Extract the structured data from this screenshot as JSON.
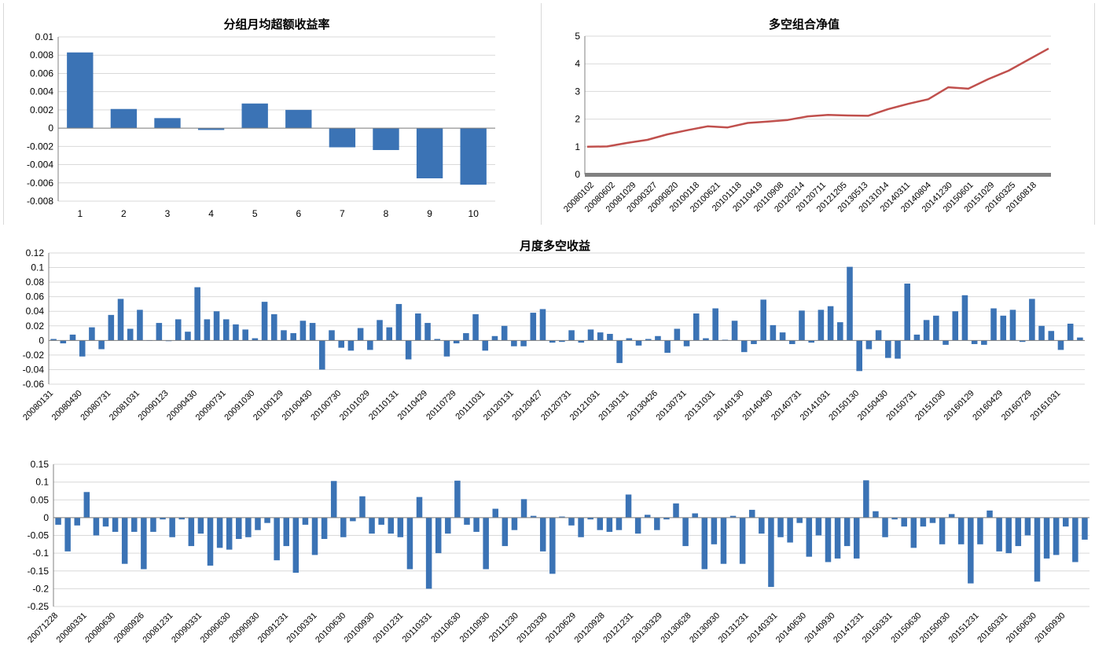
{
  "colors": {
    "bar": "#3b73b5",
    "line": "#c0504d",
    "grid": "#d9d9d9",
    "axis": "#808080",
    "zero_band": "#808080"
  },
  "chart_data": [
    {
      "type": "bar",
      "title": "分组月均超额收益率",
      "categories": [
        "1",
        "2",
        "3",
        "4",
        "5",
        "6",
        "7",
        "8",
        "9",
        "10"
      ],
      "values": [
        0.0083,
        0.0021,
        0.0011,
        -0.0002,
        0.0027,
        0.002,
        -0.0021,
        -0.0024,
        -0.0055,
        -0.0062
      ],
      "ylim": [
        -0.008,
        0.01
      ],
      "yticks": [
        0.01,
        0.008,
        0.006,
        0.004,
        0.002,
        0,
        -0.002,
        -0.004,
        -0.006,
        -0.008
      ],
      "ytick_labels": [
        "0.01",
        "0.008",
        "0.006",
        "0.004",
        "0.002",
        "0",
        "-0.002",
        "-0.004",
        "-0.006",
        "-0.008"
      ],
      "grid": true
    },
    {
      "type": "line",
      "title": "多空组合净值",
      "x_tick_labels": [
        "20080102",
        "20080602",
        "20081029",
        "20090327",
        "20090820",
        "20100118",
        "20100621",
        "20101118",
        "20110419",
        "20110908",
        "20120214",
        "20120711",
        "20121205",
        "20130513",
        "20131014",
        "20140311",
        "20140804",
        "20141230",
        "20150601",
        "20151029",
        "20160325",
        "20160818"
      ],
      "y": [
        1.0,
        1.01,
        1.14,
        1.25,
        1.45,
        1.6,
        1.74,
        1.7,
        1.86,
        1.91,
        1.97,
        2.1,
        2.15,
        2.13,
        2.12,
        2.36,
        2.55,
        2.72,
        3.15,
        3.1,
        3.45,
        3.75,
        4.15,
        4.55
      ],
      "ylim": [
        0,
        5
      ],
      "yticks": [
        0,
        1,
        2,
        3,
        4,
        5
      ],
      "ytick_labels": [
        "0",
        "1",
        "2",
        "3",
        "4",
        "5"
      ],
      "grid": true
    },
    {
      "type": "bar",
      "title": "月度多空收益",
      "x_tick_labels": [
        "20080131",
        "20080430",
        "20080731",
        "20081031",
        "20090123",
        "20090430",
        "20090731",
        "20091030",
        "20100129",
        "20100430",
        "20100730",
        "20101029",
        "20110131",
        "20110429",
        "20110729",
        "20111031",
        "20120131",
        "20120427",
        "20120731",
        "20121031",
        "20130131",
        "20130426",
        "20130731",
        "20131031",
        "20140130",
        "20140430",
        "20140731",
        "20141031",
        "20150130",
        "20150430",
        "20150731",
        "20151030",
        "20160129",
        "20160429",
        "20160729",
        "20161031"
      ],
      "values": [
        0.002,
        -0.004,
        0.008,
        -0.022,
        0.018,
        -0.012,
        0.035,
        0.057,
        0.016,
        0.042,
        0.0,
        0.024,
        -0.001,
        0.029,
        0.012,
        0.073,
        0.029,
        0.04,
        0.029,
        0.022,
        0.015,
        0.003,
        0.053,
        0.036,
        0.014,
        0.01,
        0.027,
        0.024,
        -0.04,
        0.014,
        -0.01,
        -0.014,
        0.017,
        -0.013,
        0.028,
        0.018,
        0.05,
        -0.026,
        0.037,
        0.024,
        0.002,
        -0.022,
        -0.004,
        0.01,
        0.036,
        -0.014,
        0.006,
        0.02,
        -0.008,
        -0.008,
        0.038,
        0.043,
        -0.003,
        -0.002,
        0.014,
        -0.003,
        0.015,
        0.011,
        0.009,
        -0.031,
        0.003,
        -0.007,
        0.002,
        0.006,
        -0.017,
        0.016,
        -0.008,
        0.037,
        0.003,
        0.044,
        0.001,
        0.027,
        -0.016,
        -0.005,
        0.056,
        0.021,
        0.011,
        -0.005,
        0.041,
        -0.003,
        0.042,
        0.047,
        0.025,
        0.101,
        -0.042,
        -0.012,
        0.014,
        -0.024,
        -0.025,
        0.078,
        0.008,
        0.028,
        0.034,
        -0.006,
        0.04,
        0.062,
        -0.005,
        -0.006,
        0.044,
        0.034,
        0.042,
        -0.002,
        0.057,
        0.02,
        0.013,
        -0.013,
        0.023,
        0.004
      ],
      "ylim": [
        -0.06,
        0.12
      ],
      "yticks": [
        0.12,
        0.1,
        0.08,
        0.06,
        0.04,
        0.02,
        0,
        -0.02,
        -0.04,
        -0.06
      ],
      "ytick_labels": [
        "0.12",
        "0.1",
        "0.08",
        "0.06",
        "0.04",
        "0.02",
        "0",
        "-0.02",
        "-0.04",
        "-0.06"
      ],
      "grid": true
    },
    {
      "type": "bar",
      "x_tick_labels": [
        "20071228",
        "20080331",
        "20080630",
        "20080926",
        "20081231",
        "20090331",
        "20090630",
        "20090930",
        "20091231",
        "20100331",
        "20100630",
        "20100930",
        "20101231",
        "20110331",
        "20110630",
        "20110930",
        "20111230",
        "20120330",
        "20120629",
        "20120928",
        "20121231",
        "20130329",
        "20130628",
        "20130930",
        "20131231",
        "20140331",
        "20140630",
        "20140930",
        "20141231",
        "20150331",
        "20150630",
        "20150930",
        "20151231",
        "20160331",
        "20160630",
        "20160930"
      ],
      "values": [
        -0.02,
        -0.095,
        -0.022,
        0.072,
        -0.05,
        -0.025,
        -0.04,
        -0.13,
        -0.04,
        -0.145,
        -0.04,
        -0.005,
        -0.055,
        -0.005,
        -0.08,
        -0.045,
        -0.135,
        -0.085,
        -0.09,
        -0.06,
        -0.055,
        -0.035,
        -0.015,
        -0.12,
        -0.08,
        -0.155,
        -0.02,
        -0.105,
        -0.06,
        0.103,
        -0.055,
        -0.01,
        0.06,
        -0.045,
        -0.02,
        -0.045,
        -0.055,
        -0.145,
        0.058,
        -0.2,
        -0.1,
        -0.045,
        0.104,
        -0.02,
        -0.04,
        -0.145,
        0.025,
        -0.08,
        -0.035,
        0.052,
        0.005,
        -0.095,
        -0.158,
        0.003,
        -0.022,
        -0.055,
        -0.005,
        -0.035,
        -0.04,
        -0.035,
        0.065,
        -0.045,
        0.008,
        -0.035,
        -0.005,
        0.04,
        -0.08,
        0.012,
        -0.145,
        -0.075,
        -0.13,
        0.005,
        -0.13,
        0.022,
        -0.045,
        -0.195,
        -0.055,
        -0.07,
        -0.015,
        -0.11,
        -0.05,
        -0.125,
        -0.115,
        -0.08,
        -0.115,
        0.105,
        0.018,
        -0.055,
        -0.005,
        -0.025,
        -0.085,
        -0.025,
        -0.015,
        -0.075,
        0.01,
        -0.075,
        -0.185,
        -0.075,
        0.02,
        -0.095,
        -0.1,
        -0.08,
        -0.05,
        -0.18,
        -0.115,
        -0.105,
        -0.025,
        -0.125,
        -0.062
      ],
      "ylim": [
        -0.25,
        0.15
      ],
      "yticks": [
        0.15,
        0.1,
        0.05,
        0,
        -0.05,
        -0.1,
        -0.15,
        -0.2,
        -0.25
      ],
      "ytick_labels": [
        "0.15",
        "0.1",
        "0.05",
        "0",
        "-0.05",
        "-0.1",
        "-0.15",
        "-0.2",
        "-0.25"
      ],
      "grid": true
    }
  ]
}
